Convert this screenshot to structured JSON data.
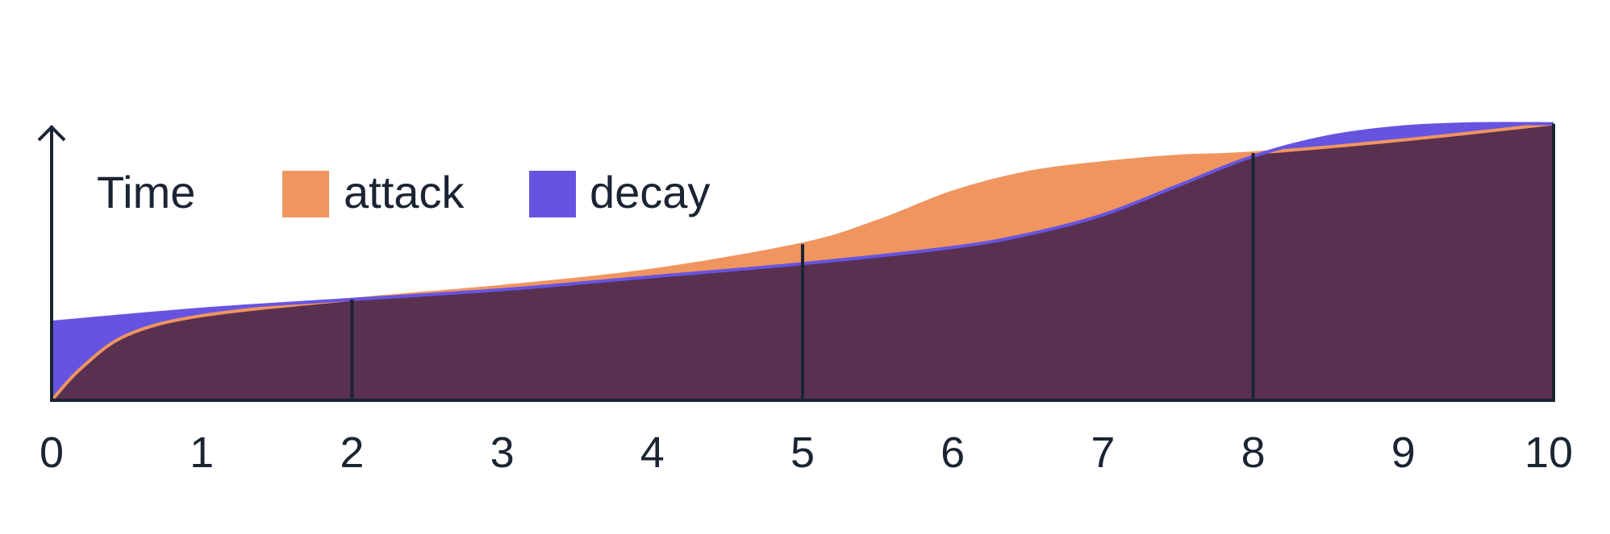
{
  "chart_data": {
    "type": "area",
    "title": "",
    "xlabel": "",
    "ylabel": "Time",
    "x_ticks": [
      0,
      1,
      2,
      3,
      4,
      5,
      6,
      7,
      8,
      9,
      10
    ],
    "xlim": [
      0,
      10
    ],
    "ylim": [
      0,
      1
    ],
    "grid": false,
    "legend": {
      "placement": "top-left",
      "title": "Time"
    },
    "markers": [
      2,
      5,
      8
    ],
    "series": [
      {
        "name": "attack",
        "color": "#f0955f",
        "x": [
          0,
          0.2,
          0.5,
          1,
          2,
          3,
          4,
          5,
          5.5,
          6,
          6.5,
          7,
          7.5,
          8,
          9,
          10
        ],
        "y": [
          0,
          0.1,
          0.2,
          0.26,
          0.31,
          0.35,
          0.4,
          0.48,
          0.55,
          0.64,
          0.7,
          0.73,
          0.75,
          0.76,
          0.8,
          0.85
        ]
      },
      {
        "name": "decay",
        "color": "#6654e1",
        "x": [
          0,
          1,
          2,
          3,
          4,
          5,
          6,
          6.5,
          7,
          7.5,
          8,
          8.5,
          9,
          9.5,
          10
        ],
        "y": [
          0.24,
          0.28,
          0.31,
          0.34,
          0.38,
          0.42,
          0.47,
          0.51,
          0.57,
          0.66,
          0.75,
          0.81,
          0.84,
          0.85,
          0.85
        ]
      }
    ],
    "overlap_color": "#5a3050",
    "axis_color": "#1b2433"
  }
}
